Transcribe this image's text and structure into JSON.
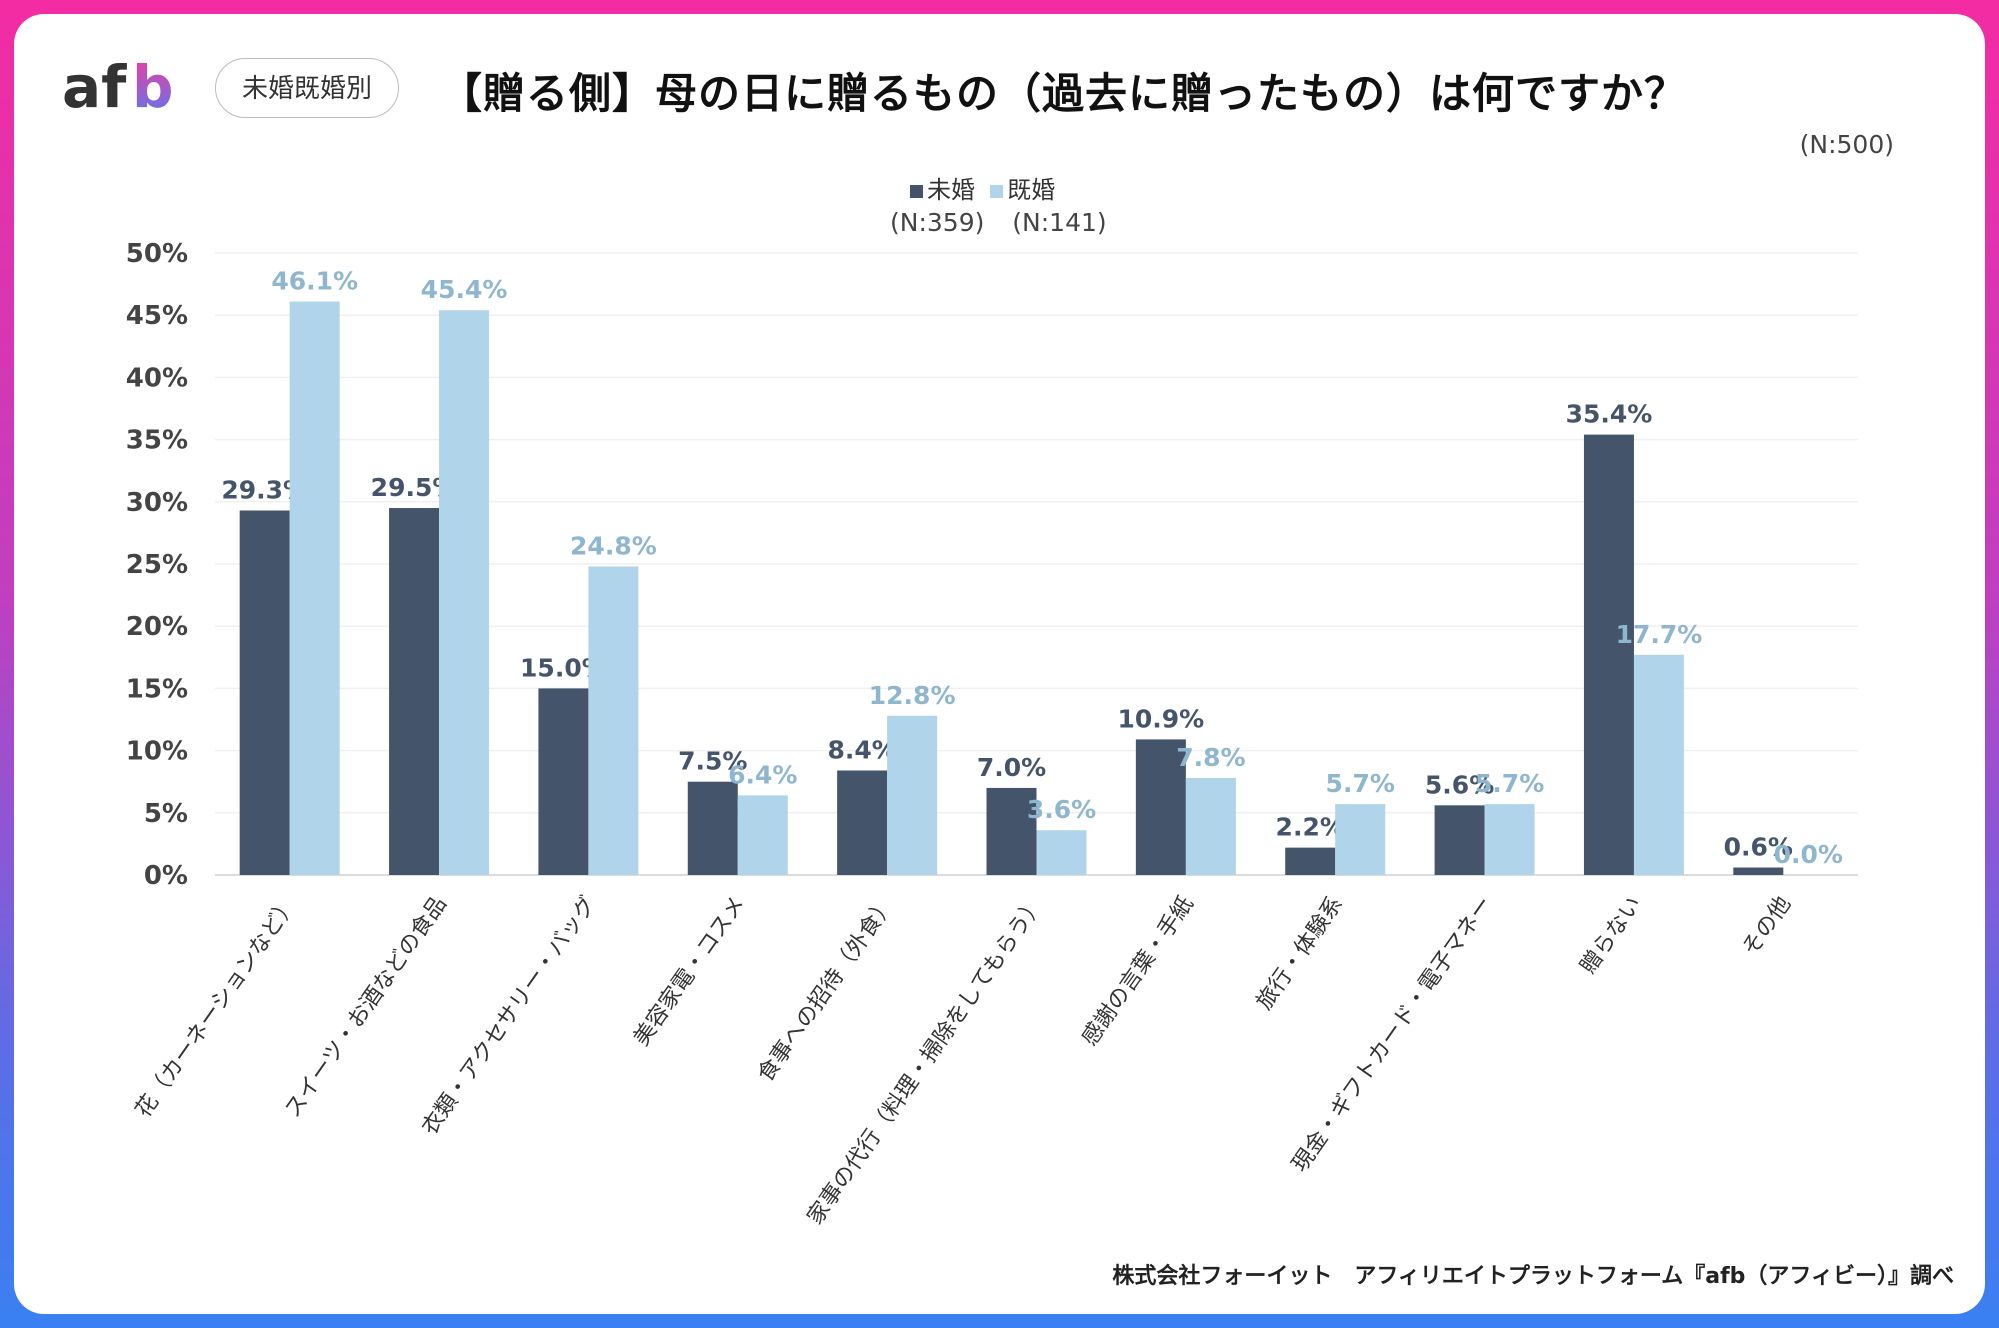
{
  "header": {
    "logo": "afb",
    "pill": "未婚既婚別",
    "title": "【贈る側】母の日に贈るもの（過去に贈ったもの）は何ですか？",
    "n_total": "(N:500)"
  },
  "footer": "株式会社フォーイット　アフィリエイトプラットフォーム『afb（アフィビー）』調べ",
  "legend": {
    "n_labels": "(N:359) (N:141)"
  },
  "chart_data": {
    "type": "bar",
    "categories": [
      "花（カーネーションなど）",
      "スイーツ・お酒などの食品",
      "衣類・アクセサリー・バッグ",
      "美容家電・コスメ",
      "食事への招待（外食）",
      "家事の代行（料理・掃除をしてもらう）",
      "感謝の言葉・手紙",
      "旅行・体験系",
      "現金・ギフトカード・電子マネー",
      "贈らない",
      "その他"
    ],
    "series": [
      {
        "name": "未婚",
        "color": "#44546a",
        "values": [
          29.3,
          29.5,
          15.0,
          7.5,
          8.4,
          7.0,
          10.9,
          2.2,
          5.6,
          35.4,
          0.6
        ]
      },
      {
        "name": "既婚",
        "color": "#b0d4ea",
        "values": [
          46.1,
          45.4,
          24.8,
          6.4,
          12.8,
          3.6,
          7.8,
          5.7,
          5.7,
          17.7,
          0.0
        ]
      }
    ],
    "ylim": [
      0,
      50
    ],
    "yticks": [
      "0%",
      "5%",
      "10%",
      "15%",
      "20%",
      "25%",
      "30%",
      "35%",
      "40%",
      "45%",
      "50%"
    ],
    "label_colors": [
      "#44546a",
      "#8fb6cf"
    ],
    "grid": true,
    "legend_position": "top-center"
  }
}
